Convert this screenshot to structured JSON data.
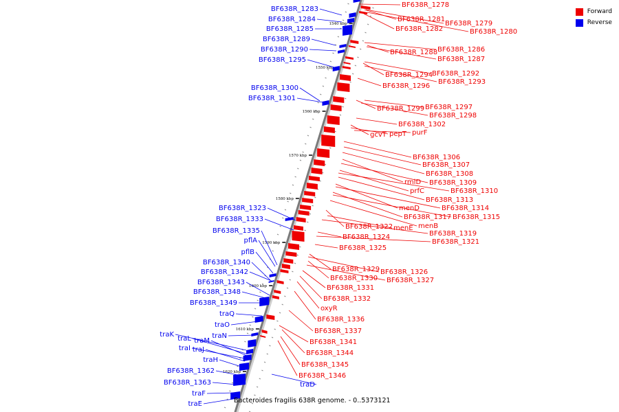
{
  "legend": {
    "forward": {
      "label": "Forward",
      "color": "#ee0000"
    },
    "reverse": {
      "label": "Reverse",
      "color": "#0000ee"
    }
  },
  "caption": "Bacteroides fragilis 638R genome. - 0..5373121",
  "scale_ticks": [
    "1540 kbp",
    "1550 kbp",
    "1560 kbp",
    "1570 kbp",
    "1580 kbp",
    "1590 kbp",
    "1600 kbp",
    "1610 kbp",
    "1620 kbp"
  ],
  "reverse_genes": [
    "BF638R_1283",
    "BF638R_1284",
    "BF638R_1285",
    "BF638R_1289",
    "BF638R_1290",
    "BF638R_1295",
    "BF638R_1300",
    "BF638R_1301",
    "BF638R_1323",
    "BF638R_1333",
    "BF638R_1335",
    "pflA",
    "pflB",
    "BF638R_1340",
    "BF638R_1342",
    "BF638R_1343",
    "BF638R_1348",
    "BF638R_1349",
    "traQ",
    "traO",
    "traN",
    "traK",
    "traL",
    "traM",
    "traI",
    "traJ",
    "traH",
    "BF638R_1362",
    "BF638R_1363",
    "traF",
    "traE",
    "traD"
  ],
  "forward_genes": [
    "BF638R_1278",
    "BF638R_1281",
    "BF638R_1279",
    "BF638R_1282",
    "BF638R_1280",
    "BF638R_1286",
    "BF638R_1288",
    "BF638R_1287",
    "BF638R_1292",
    "BF638R_1294",
    "BF638R_1293",
    "BF638R_1296",
    "BF638R_1297",
    "BF638R_1299",
    "BF638R_1298",
    "BF638R_1302",
    "gcvT",
    "pepT",
    "purF",
    "BF638R_1306",
    "BF638R_1307",
    "BF638R_1308",
    "rmlD",
    "BF638R_1309",
    "prfC",
    "BF638R_1310",
    "BF638R_1313",
    "menD",
    "BF638R_1314",
    "BF638R_1317",
    "BF638R_1315",
    "menB",
    "BF638R_1322",
    "menE",
    "BF638R_1319",
    "BF638R_1324",
    "BF638R_1321",
    "BF638R_1325",
    "BF638R_1329",
    "BF638R_1326",
    "BF638R_1330",
    "BF638R_1327",
    "BF638R_1331",
    "BF638R_1332",
    "oxyR",
    "BF638R_1336",
    "BF638R_1337",
    "BF638R_1341",
    "BF638R_1344",
    "BF638R_1345",
    "BF638R_1346"
  ]
}
